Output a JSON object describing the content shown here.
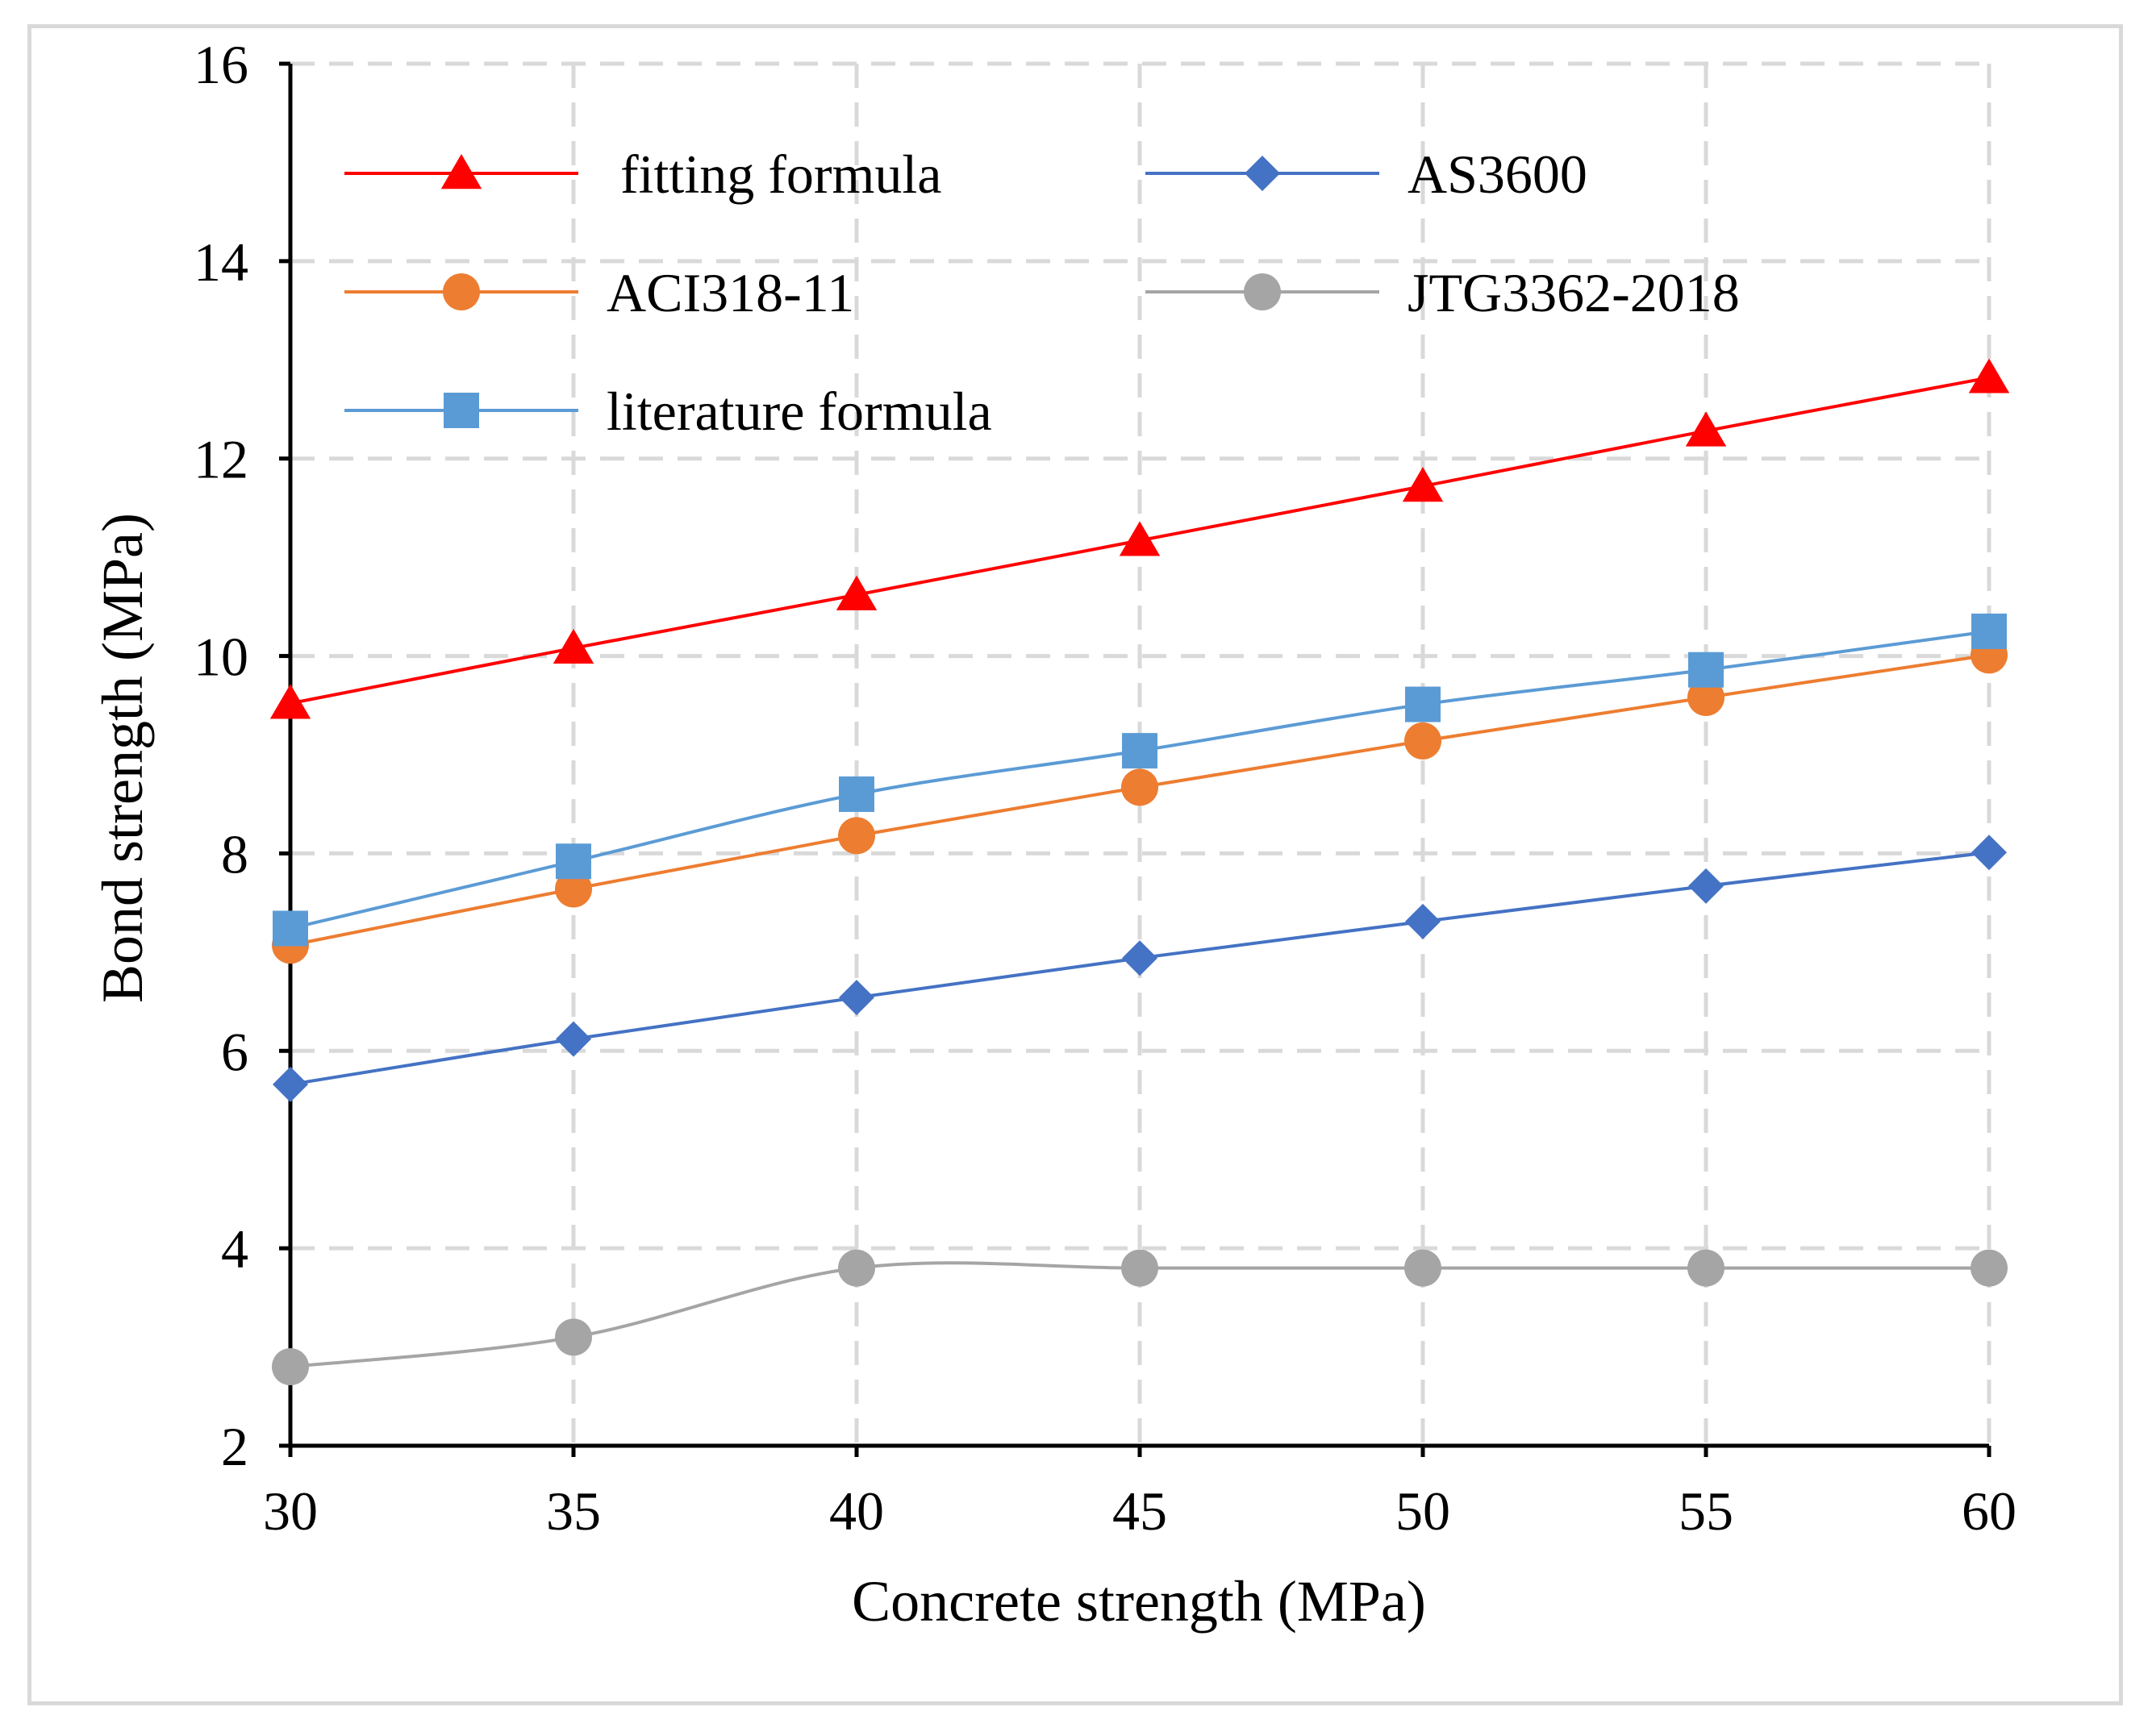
{
  "chart_data": {
    "type": "line",
    "title": "",
    "xlabel": "Concrete strength (MPa)",
    "ylabel": "Bond strength (MPa)",
    "xlim": [
      30,
      60
    ],
    "ylim": [
      2,
      16
    ],
    "x": [
      30,
      35,
      40,
      45,
      50,
      55,
      60
    ],
    "x_ticks": [
      30,
      35,
      40,
      45,
      50,
      55,
      60
    ],
    "y_ticks": [
      2,
      4,
      6,
      8,
      10,
      12,
      14,
      16
    ],
    "grid": true,
    "legend_position": "top-left",
    "series": [
      {
        "name": " fitting formula",
        "marker": "triangle",
        "color": "#ff0000",
        "values": [
          9.52,
          10.08,
          10.62,
          11.17,
          11.72,
          12.28,
          12.82
        ]
      },
      {
        "name": "AS3600",
        "marker": "diamond",
        "color": "#4472c4",
        "values": [
          5.66,
          6.12,
          6.54,
          6.94,
          7.31,
          7.67,
          8.01
        ]
      },
      {
        "name": "ACI318-11",
        "marker": "circle",
        "color": "#ed7d31",
        "values": [
          7.07,
          7.64,
          8.18,
          8.67,
          9.14,
          9.58,
          10.01
        ]
      },
      {
        "name": "JTG3362-2018",
        "marker": "circle",
        "color": "#a5a5a5",
        "values": [
          2.8,
          3.1,
          3.8,
          3.8,
          3.8,
          3.8,
          3.8
        ]
      },
      {
        "name": "literature formula",
        "marker": "square",
        "color": "#5b9bd5",
        "values": [
          7.24,
          7.92,
          8.6,
          9.04,
          9.51,
          9.86,
          10.25
        ]
      }
    ]
  }
}
